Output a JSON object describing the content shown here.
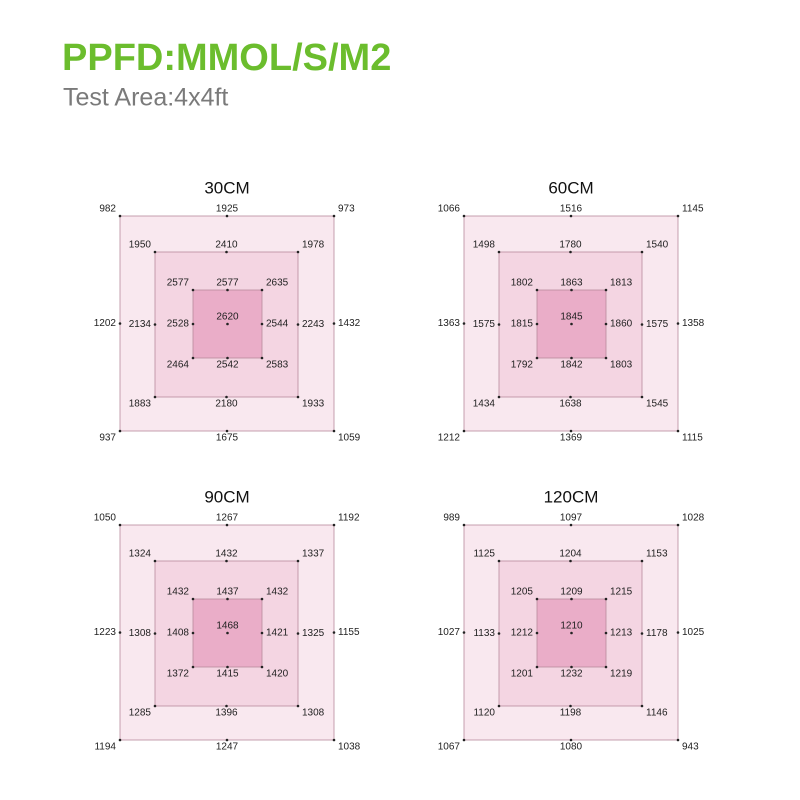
{
  "header": {
    "title": "PPFD:MMOL/S/M2",
    "subtitle": "Test Area:4x4ft"
  },
  "panels": [
    {
      "label": "30CM",
      "center": 2620,
      "rings": [
        {
          "tl": 982,
          "t": 1925,
          "tr": 973,
          "l": 1202,
          "r": 1432,
          "bl": 937,
          "b": 1675,
          "br": 1059
        },
        {
          "tl": 1950,
          "t": 2410,
          "tr": 1978,
          "l": 2134,
          "r": 2243,
          "bl": 1883,
          "b": 2180,
          "br": 1933
        },
        {
          "tl": 2577,
          "t": 2577,
          "tr": 2635,
          "l": 2528,
          "r": 2544,
          "bl": 2464,
          "b": 2542,
          "br": 2583
        }
      ]
    },
    {
      "label": "60CM",
      "center": 1845,
      "rings": [
        {
          "tl": 1066,
          "t": 1516,
          "tr": 1145,
          "l": 1363,
          "r": 1358,
          "bl": 1212,
          "b": 1369,
          "br": 1115
        },
        {
          "tl": 1498,
          "t": 1780,
          "tr": 1540,
          "l": 1575,
          "r": 1575,
          "bl": 1434,
          "b": 1638,
          "br": 1545
        },
        {
          "tl": 1802,
          "t": 1863,
          "tr": 1813,
          "l": 1815,
          "r": 1860,
          "bl": 1792,
          "b": 1842,
          "br": 1803
        }
      ]
    },
    {
      "label": "90CM",
      "center": 1468,
      "rings": [
        {
          "tl": 1050,
          "t": 1267,
          "tr": 1192,
          "l": 1223,
          "r": 1155,
          "bl": 1194,
          "b": 1247,
          "br": 1038
        },
        {
          "tl": 1324,
          "t": 1432,
          "tr": 1337,
          "l": 1308,
          "r": 1325,
          "bl": 1285,
          "b": 1396,
          "br": 1308
        },
        {
          "tl": 1432,
          "t": 1437,
          "tr": 1432,
          "l": 1408,
          "r": 1421,
          "bl": 1372,
          "b": 1415,
          "br": 1420
        }
      ]
    },
    {
      "label": "120CM",
      "center": 1210,
      "rings": [
        {
          "tl": 989,
          "t": 1097,
          "tr": 1028,
          "l": 1027,
          "r": 1025,
          "bl": 1067,
          "b": 1080,
          "br": 943
        },
        {
          "tl": 1125,
          "t": 1204,
          "tr": 1153,
          "l": 1133,
          "r": 1178,
          "bl": 1120,
          "b": 1198,
          "br": 1146
        },
        {
          "tl": 1205,
          "t": 1209,
          "tr": 1215,
          "l": 1212,
          "r": 1213,
          "bl": 1201,
          "b": 1232,
          "br": 1219
        }
      ]
    }
  ]
}
